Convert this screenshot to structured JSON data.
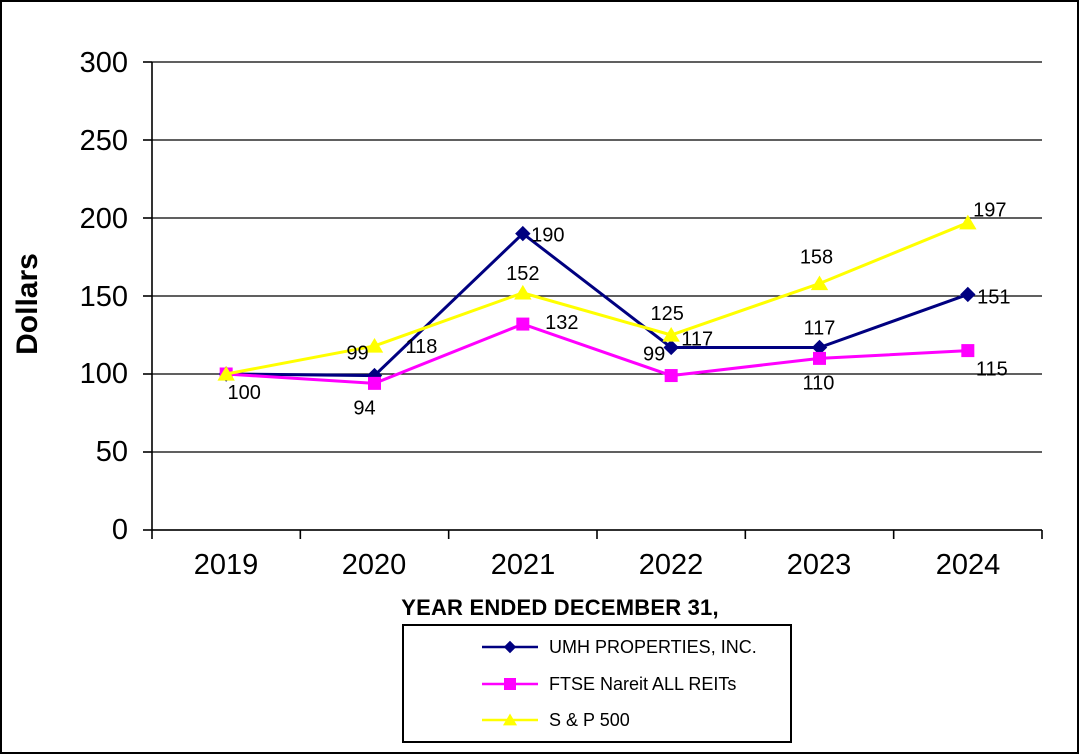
{
  "chart_data": {
    "type": "line",
    "title": "",
    "xlabel": "YEAR ENDED DECEMBER 31,",
    "ylabel": "Dollars",
    "categories": [
      "2019",
      "2020",
      "2021",
      "2022",
      "2023",
      "2024"
    ],
    "ylim": [
      0,
      300
    ],
    "yticks": [
      0,
      50,
      100,
      150,
      200,
      250,
      300
    ],
    "ytick_labels": [
      "0",
      "50",
      "100",
      "150",
      "200",
      "250",
      "300"
    ],
    "grid": "horizontal",
    "legend_position": "bottom-boxed",
    "series": [
      {
        "name": "UMH PROPERTIES, INC.",
        "color": "#000080",
        "marker": "diamond",
        "values": [
          100,
          99,
          190,
          117,
          117,
          151
        ],
        "labels": [
          "100",
          "99",
          "190",
          "117",
          "117",
          "151"
        ],
        "label_offsets": [
          [
            18,
            18
          ],
          [
            -17,
            -23
          ],
          [
            25,
            1
          ],
          [
            26,
            -9
          ],
          [
            0,
            -20
          ],
          [
            26,
            2
          ]
        ]
      },
      {
        "name": "FTSE Nareit ALL REITs",
        "color": "#FF00FF",
        "marker": "square",
        "values": [
          100,
          94,
          132,
          99,
          110,
          115
        ],
        "labels": [
          null,
          "94",
          "132",
          "99",
          "110",
          "115"
        ],
        "label_offsets": [
          [
            0,
            0
          ],
          [
            -10,
            24
          ],
          [
            39,
            -2
          ],
          [
            -17,
            -22
          ],
          [
            -1,
            24
          ],
          [
            24,
            18
          ]
        ]
      },
      {
        "name": "S & P 500",
        "color": "#FFFF00",
        "marker": "triangle",
        "values": [
          100,
          118,
          152,
          125,
          158,
          197
        ],
        "labels": [
          null,
          "118",
          "152",
          "125",
          "158",
          "197"
        ],
        "label_offsets": [
          [
            0,
            0
          ],
          [
            47,
            0
          ],
          [
            0,
            -20
          ],
          [
            -4,
            -22
          ],
          [
            -3,
            -27
          ],
          [
            22,
            -13
          ]
        ]
      }
    ]
  }
}
